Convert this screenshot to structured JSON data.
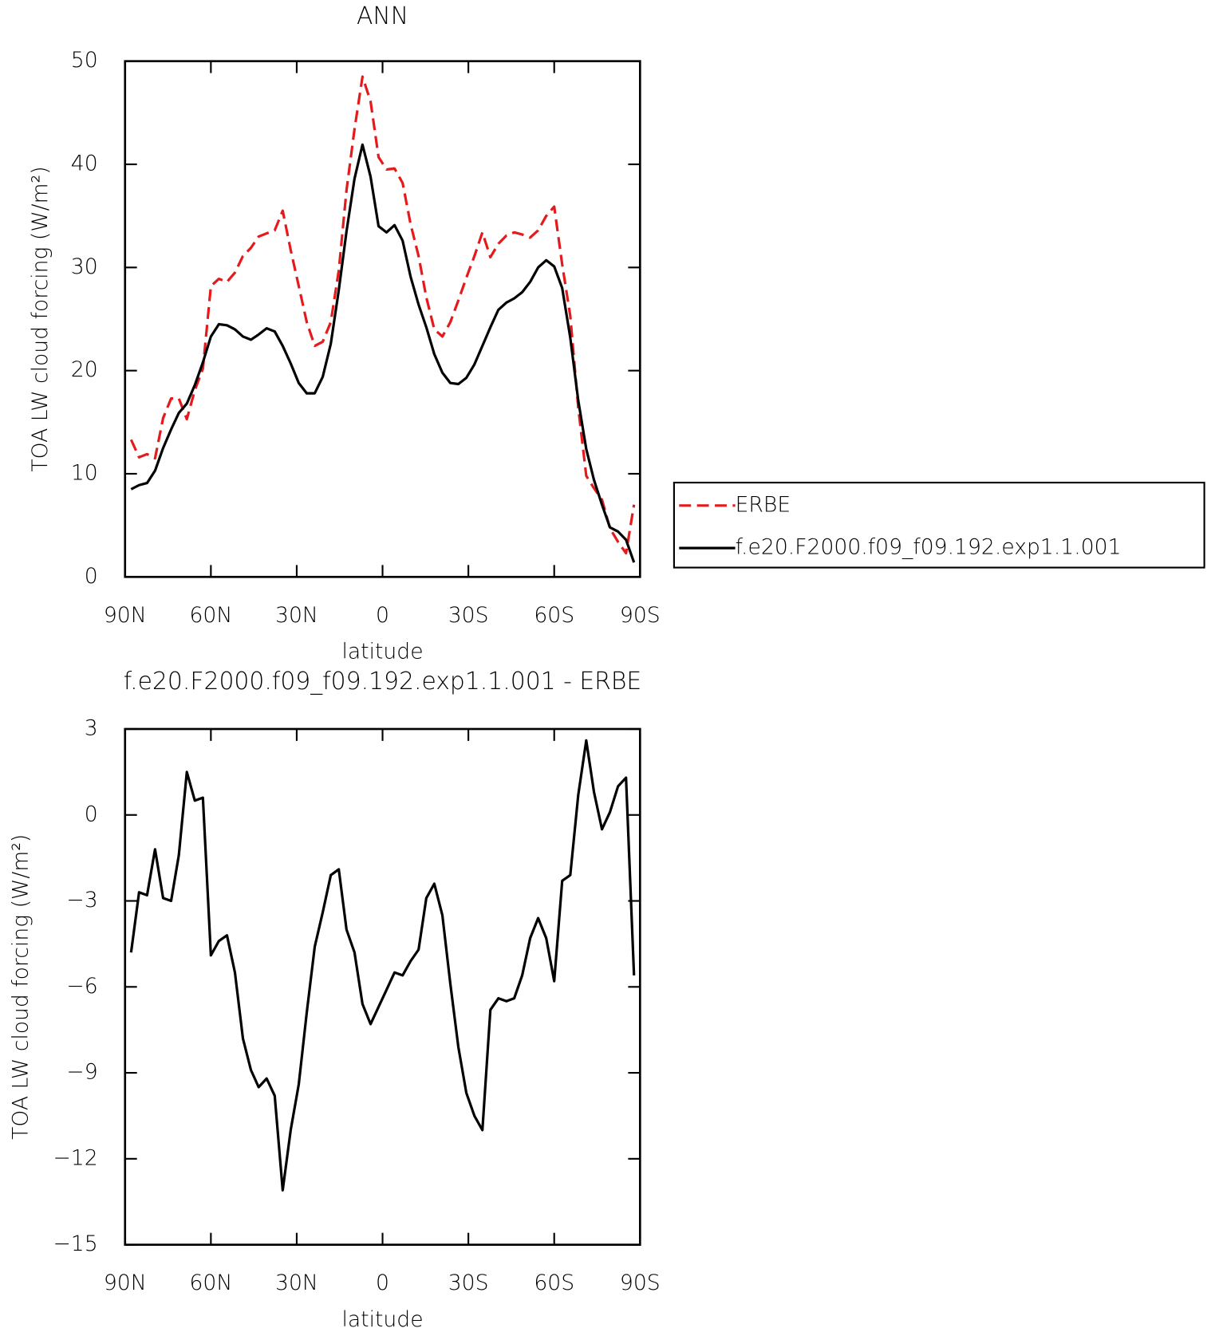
{
  "chart_data": [
    {
      "type": "line",
      "title": "ANN",
      "xlabel": "latitude",
      "ylabel": "TOA LW cloud forcing (W/m²)",
      "x": [
        87.9,
        85.1,
        82.3,
        79.5,
        76.7,
        73.9,
        71.2,
        68.4,
        65.6,
        62.8,
        60.0,
        57.2,
        54.4,
        51.6,
        48.8,
        46.0,
        43.3,
        40.5,
        37.7,
        34.9,
        32.1,
        29.3,
        26.5,
        23.7,
        20.9,
        18.1,
        15.3,
        12.6,
        9.8,
        7.0,
        4.2,
        1.4,
        -1.4,
        -4.2,
        -7.0,
        -9.8,
        -12.6,
        -15.3,
        -18.1,
        -20.9,
        -23.7,
        -26.5,
        -29.3,
        -32.1,
        -34.9,
        -37.7,
        -40.5,
        -43.3,
        -46.0,
        -48.8,
        -51.6,
        -54.4,
        -57.2,
        -60.0,
        -62.8,
        -65.6,
        -68.4,
        -71.2,
        -73.9,
        -76.7,
        -79.5,
        -82.3,
        -85.1,
        -87.9
      ],
      "xlim": [
        90,
        -90
      ],
      "xticks": [
        {
          "value": 90,
          "label": "90N"
        },
        {
          "value": 60,
          "label": "60N"
        },
        {
          "value": 30,
          "label": "30N"
        },
        0,
        {
          "value": -30,
          "label": "30S"
        },
        {
          "value": -60,
          "label": "60S"
        },
        {
          "value": -90,
          "label": "90S"
        }
      ],
      "ylim": [
        0,
        50
      ],
      "yticks": [
        0,
        10,
        20,
        30,
        40,
        50
      ],
      "legend": "right",
      "series": [
        {
          "name": "ERBE",
          "color": "#e41a1c",
          "line_style": "dashed",
          "values": [
            13.3,
            11.6,
            11.9,
            11.5,
            15.4,
            17.3,
            17.3,
            15.3,
            18.1,
            20.2,
            28.2,
            28.9,
            28.6,
            29.5,
            31.1,
            31.9,
            33.0,
            33.3,
            33.6,
            35.5,
            31.7,
            28.2,
            24.7,
            22.4,
            22.8,
            24.7,
            29.7,
            37.5,
            43.4,
            48.5,
            46.1,
            40.7,
            39.5,
            39.6,
            38.2,
            34.2,
            31.1,
            27.1,
            24.0,
            23.3,
            24.7,
            26.8,
            29.0,
            31.1,
            33.4,
            31.0,
            32.3,
            33.1,
            33.4,
            33.2,
            32.9,
            33.6,
            35.0,
            35.9,
            30.3,
            25.3,
            16.4,
            9.8,
            8.6,
            7.5,
            4.7,
            3.4,
            2.3,
            7.0
          ]
        },
        {
          "name": "f.e20.F2000.f09_f09.192.exp1.1.001",
          "color": "#000000",
          "line_style": "solid",
          "values": [
            8.5,
            8.9,
            9.1,
            10.3,
            12.5,
            14.3,
            15.9,
            16.8,
            18.6,
            20.8,
            23.3,
            24.5,
            24.4,
            24.0,
            23.3,
            23.0,
            23.5,
            24.1,
            23.8,
            22.4,
            20.7,
            18.8,
            17.8,
            17.8,
            19.4,
            22.6,
            27.8,
            33.5,
            38.6,
            41.9,
            38.8,
            34.0,
            33.4,
            34.1,
            32.6,
            29.1,
            26.4,
            24.2,
            21.6,
            19.8,
            18.8,
            18.7,
            19.3,
            20.6,
            22.4,
            24.2,
            25.9,
            26.6,
            27.0,
            27.6,
            28.6,
            30.0,
            30.7,
            30.1,
            28.0,
            23.2,
            17.1,
            12.4,
            9.4,
            7.0,
            4.8,
            4.4,
            3.6,
            1.4
          ]
        }
      ]
    },
    {
      "type": "line",
      "title": "f.e20.F2000.f09_f09.192.exp1.1.001 - ERBE",
      "xlabel": "latitude",
      "ylabel": "TOA LW cloud forcing (W/m²)",
      "x": [
        87.9,
        85.1,
        82.3,
        79.5,
        76.7,
        73.9,
        71.2,
        68.4,
        65.6,
        62.8,
        60.0,
        57.2,
        54.4,
        51.6,
        48.8,
        46.0,
        43.3,
        40.5,
        37.7,
        34.9,
        32.1,
        29.3,
        26.5,
        23.7,
        20.9,
        18.1,
        15.3,
        12.6,
        9.8,
        7.0,
        4.2,
        1.4,
        -1.4,
        -4.2,
        -7.0,
        -9.8,
        -12.6,
        -15.3,
        -18.1,
        -20.9,
        -23.7,
        -26.5,
        -29.3,
        -32.1,
        -34.9,
        -37.7,
        -40.5,
        -43.3,
        -46.0,
        -48.8,
        -51.6,
        -54.4,
        -57.2,
        -60.0,
        -62.8,
        -65.6,
        -68.4,
        -71.2,
        -73.9,
        -76.7,
        -79.5,
        -82.3,
        -85.1,
        -87.9
      ],
      "xlim": [
        90,
        -90
      ],
      "xticks": [
        {
          "value": 90,
          "label": "90N"
        },
        {
          "value": 60,
          "label": "60N"
        },
        {
          "value": 30,
          "label": "30N"
        },
        0,
        {
          "value": -30,
          "label": "30S"
        },
        {
          "value": -60,
          "label": "60S"
        },
        {
          "value": -90,
          "label": "90S"
        }
      ],
      "ylim": [
        -15,
        3
      ],
      "yticks": [
        {
          "value": -15,
          "label": "−15"
        },
        {
          "value": -12,
          "label": "−12"
        },
        {
          "value": -9,
          "label": "−9"
        },
        {
          "value": -6,
          "label": "−6"
        },
        {
          "value": -3,
          "label": "−3"
        },
        0,
        3
      ],
      "series": [
        {
          "color": "#000000",
          "line_style": "solid",
          "values": [
            -4.8,
            -2.7,
            -2.8,
            -1.2,
            -2.9,
            -3.0,
            -1.4,
            1.5,
            0.5,
            0.6,
            -4.9,
            -4.4,
            -4.2,
            -5.5,
            -7.8,
            -8.9,
            -9.5,
            -9.2,
            -9.8,
            -13.1,
            -11.0,
            -9.4,
            -6.9,
            -4.6,
            -3.4,
            -2.1,
            -1.9,
            -4.0,
            -4.8,
            -6.6,
            -7.3,
            -6.7,
            -6.1,
            -5.5,
            -5.6,
            -5.1,
            -4.7,
            -2.9,
            -2.4,
            -3.5,
            -5.9,
            -8.1,
            -9.7,
            -10.5,
            -11.0,
            -6.8,
            -6.4,
            -6.5,
            -6.4,
            -5.6,
            -4.3,
            -3.6,
            -4.3,
            -5.8,
            -2.3,
            -2.1,
            0.7,
            2.6,
            0.8,
            -0.5,
            0.1,
            1.0,
            1.3,
            -5.6
          ]
        }
      ]
    }
  ]
}
